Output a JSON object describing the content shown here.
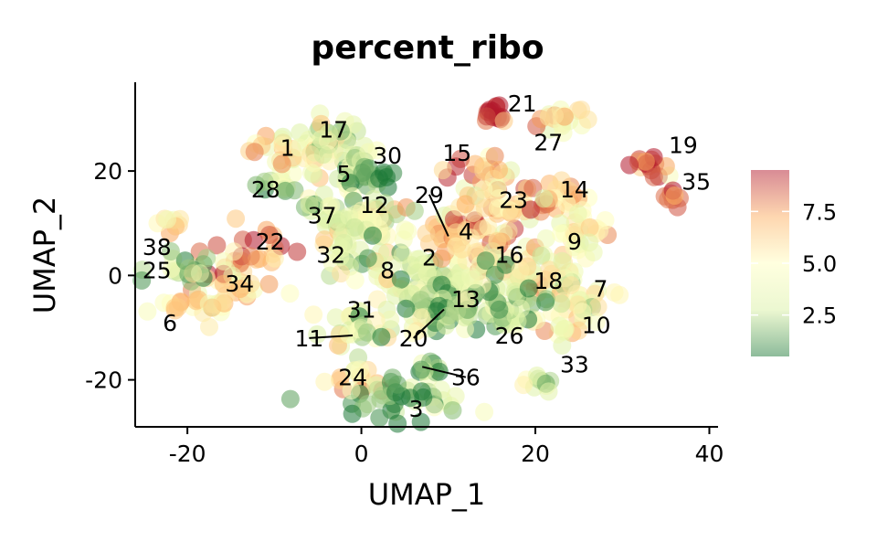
{
  "chart_data": {
    "type": "scatter",
    "title": "percent_ribo",
    "xlabel": "UMAP_1",
    "ylabel": "UMAP_2",
    "xlim": [
      -26,
      41
    ],
    "ylim": [
      -29,
      37
    ],
    "x_ticks": [
      -20,
      0,
      20,
      40
    ],
    "x_tick_labels": [
      "-20",
      "0",
      "20",
      "40"
    ],
    "y_ticks": [
      -20,
      0,
      20
    ],
    "y_tick_labels": [
      "-20",
      "0",
      "20"
    ],
    "color_scale": {
      "palette": [
        "#1b7837",
        "#d9f0a3",
        "#ffffbf",
        "#fdae61",
        "#b2182b"
      ],
      "range": [
        0.5,
        9.5
      ],
      "breaks": [
        2.5,
        5.0,
        7.5
      ],
      "break_labels": [
        "2.5",
        "5.0",
        "7.5"
      ],
      "alpha": 0.55
    },
    "legend_position": "right",
    "grid": false,
    "clusters": [
      {
        "label": "1",
        "x": -8.5,
        "y": 24,
        "label_x": -8.5,
        "label_y": 24.5,
        "value": 5.5,
        "sx": 2.2,
        "sy": 2.2,
        "n": 30
      },
      {
        "label": "17",
        "x": -3.5,
        "y": 26,
        "label_x": -3.2,
        "label_y": 28,
        "value": 3.5,
        "sx": 2.0,
        "sy": 2.0,
        "n": 25
      },
      {
        "label": "28",
        "x": -10,
        "y": 17,
        "label_x": -11,
        "label_y": 16.5,
        "value": 2.2,
        "sx": 1.2,
        "sy": 1.2,
        "n": 10
      },
      {
        "label": "5",
        "x": -2,
        "y": 21,
        "label_x": -2,
        "label_y": 19.5,
        "value": 3.5,
        "sx": 2.5,
        "sy": 2.0,
        "n": 30
      },
      {
        "label": "30",
        "x": 2,
        "y": 19,
        "label_x": 3,
        "label_y": 23,
        "value": 1.2,
        "sx": 1.5,
        "sy": 1.5,
        "n": 15
      },
      {
        "label": "37",
        "x": -5.5,
        "y": 13,
        "label_x": -4.5,
        "label_y": 11.5,
        "value": 3.0,
        "sx": 1.5,
        "sy": 1.2,
        "n": 10
      },
      {
        "label": "12",
        "x": 1,
        "y": 11,
        "label_x": 1.5,
        "label_y": 13.5,
        "value": 3.5,
        "sx": 2.5,
        "sy": 2.0,
        "n": 30
      },
      {
        "label": "32",
        "x": 0,
        "y": 8,
        "label_x": -3.5,
        "label_y": 4,
        "value": 4.0,
        "sx": 3.0,
        "sy": 2.5,
        "n": 35
      },
      {
        "label": "8",
        "x": 3,
        "y": 2,
        "label_x": 3,
        "label_y": 1,
        "value": 3.0,
        "sx": 3.0,
        "sy": 2.5,
        "n": 30
      },
      {
        "label": "2",
        "x": 8,
        "y": 0,
        "label_x": 7.8,
        "label_y": 3.5,
        "value": 3.5,
        "sx": 3.0,
        "sy": 3.0,
        "n": 40
      },
      {
        "label": "29",
        "x": 9.5,
        "y": 8,
        "label_x": 7.8,
        "label_y": 15.5,
        "line_to_x": 10,
        "line_to_y": 7.5,
        "value": 7.0,
        "sx": 1.2,
        "sy": 1.2,
        "n": 10
      },
      {
        "label": "4",
        "x": 11.5,
        "y": 7,
        "label_x": 12,
        "label_y": 8.5,
        "value": 7.0,
        "sx": 2.5,
        "sy": 2.5,
        "n": 30
      },
      {
        "label": "16",
        "x": 16,
        "y": 5,
        "label_x": 17,
        "label_y": 4,
        "value": 5.5,
        "sx": 3.0,
        "sy": 3.0,
        "n": 35
      },
      {
        "label": "15",
        "x": 14,
        "y": 20,
        "label_x": 11,
        "label_y": 23.5,
        "value": 7.0,
        "sx": 2.0,
        "sy": 2.0,
        "n": 25
      },
      {
        "label": "21",
        "x": 15,
        "y": 31,
        "label_x": 18.5,
        "label_y": 33,
        "value": 9.0,
        "sx": 0.8,
        "sy": 1.2,
        "n": 15
      },
      {
        "label": "27",
        "x": 22,
        "y": 30,
        "label_x": 21.5,
        "label_y": 25.5,
        "value": 5.5,
        "sx": 2.0,
        "sy": 1.2,
        "n": 20
      },
      {
        "label": "23",
        "x": 16.5,
        "y": 13,
        "label_x": 17.5,
        "label_y": 14.5,
        "value": 5.5,
        "sx": 2.5,
        "sy": 2.0,
        "n": 25
      },
      {
        "label": "14",
        "x": 23,
        "y": 15,
        "label_x": 24.5,
        "label_y": 16.5,
        "value": 7.0,
        "sx": 2.5,
        "sy": 1.5,
        "n": 25
      },
      {
        "label": "9",
        "x": 24,
        "y": 8,
        "label_x": 24.5,
        "label_y": 6.5,
        "value": 5.0,
        "sx": 2.5,
        "sy": 2.5,
        "n": 30
      },
      {
        "label": "18",
        "x": 20,
        "y": 0,
        "label_x": 21.5,
        "label_y": -1,
        "value": 4.5,
        "sx": 3.0,
        "sy": 2.5,
        "n": 30
      },
      {
        "label": "7",
        "x": 25,
        "y": -4,
        "label_x": 27.5,
        "label_y": -2.5,
        "value": 3.5,
        "sx": 2.0,
        "sy": 2.0,
        "n": 20
      },
      {
        "label": "10",
        "x": 23.5,
        "y": -8,
        "label_x": 27,
        "label_y": -9.5,
        "value": 4.5,
        "sx": 2.0,
        "sy": 1.8,
        "n": 20
      },
      {
        "label": "26",
        "x": 17,
        "y": -8,
        "label_x": 17,
        "label_y": -11.5,
        "value": 2.5,
        "sx": 3.0,
        "sy": 2.5,
        "n": 30
      },
      {
        "label": "33",
        "x": 20.5,
        "y": -20,
        "label_x": 24.5,
        "label_y": -17,
        "value": 3.0,
        "sx": 1.2,
        "sy": 1.0,
        "n": 10
      },
      {
        "label": "13",
        "x": 11,
        "y": -4,
        "label_x": 12,
        "label_y": -4.5,
        "value": 2.2,
        "sx": 4.0,
        "sy": 3.0,
        "n": 50
      },
      {
        "label": "20",
        "x": 9,
        "y": -7,
        "label_x": 6,
        "label_y": -12,
        "line_to_x": 9.5,
        "line_to_y": -6.5,
        "value": 2.2,
        "sx": 2.0,
        "sy": 1.5,
        "n": 20
      },
      {
        "label": "31",
        "x": -1,
        "y": -8,
        "label_x": 0,
        "label_y": -6.5,
        "value": 3.0,
        "sx": 1.5,
        "sy": 1.2,
        "n": 10
      },
      {
        "label": "11",
        "x": 1,
        "y": -11,
        "label_x": -6,
        "label_y": -12,
        "line_to_x": -1,
        "line_to_y": -11.5,
        "value": 3.5,
        "sx": 3.0,
        "sy": 1.5,
        "n": 25
      },
      {
        "label": "36",
        "x": 8,
        "y": -18,
        "label_x": 12,
        "label_y": -19.5,
        "line_to_x": 7,
        "line_to_y": -17.5,
        "value": 2.0,
        "sx": 1.5,
        "sy": 1.0,
        "n": 10
      },
      {
        "label": "24",
        "x": 0,
        "y": -20,
        "label_x": -1,
        "label_y": -19.5,
        "value": 6.0,
        "sx": 1.5,
        "sy": 1.5,
        "n": 15
      },
      {
        "label": "3",
        "x": 5,
        "y": -24,
        "label_x": 6.3,
        "label_y": -25.5,
        "value": 2.0,
        "sx": 3.5,
        "sy": 2.0,
        "n": 40
      },
      {
        "label": "19",
        "x": 33,
        "y": 21,
        "label_x": 37,
        "label_y": 25,
        "value": 9.0,
        "sx": 1.0,
        "sy": 1.5,
        "n": 15
      },
      {
        "label": "35",
        "x": 35.5,
        "y": 15,
        "label_x": 38.5,
        "label_y": 18,
        "value": 9.0,
        "sx": 0.8,
        "sy": 0.8,
        "n": 8
      },
      {
        "label": "22",
        "x": -13,
        "y": 4,
        "label_x": -10.5,
        "label_y": 6.5,
        "value": 7.0,
        "sx": 2.5,
        "sy": 2.5,
        "n": 25
      },
      {
        "label": "34",
        "x": -15,
        "y": -2,
        "label_x": -14,
        "label_y": -1.5,
        "value": 6.0,
        "sx": 2.5,
        "sy": 2.0,
        "n": 20
      },
      {
        "label": "38",
        "x": -22,
        "y": 10,
        "label_x": -23.5,
        "label_y": 5.5,
        "value": 6.0,
        "sx": 1.0,
        "sy": 0.8,
        "n": 8
      },
      {
        "label": "25",
        "x": -19,
        "y": 1,
        "label_x": -23.5,
        "label_y": 1,
        "value": 2.0,
        "sx": 2.5,
        "sy": 1.5,
        "n": 20
      },
      {
        "label": "6",
        "x": -18,
        "y": -6,
        "label_x": -22,
        "label_y": -9,
        "value": 5.5,
        "sx": 2.5,
        "sy": 1.5,
        "n": 25
      }
    ]
  }
}
